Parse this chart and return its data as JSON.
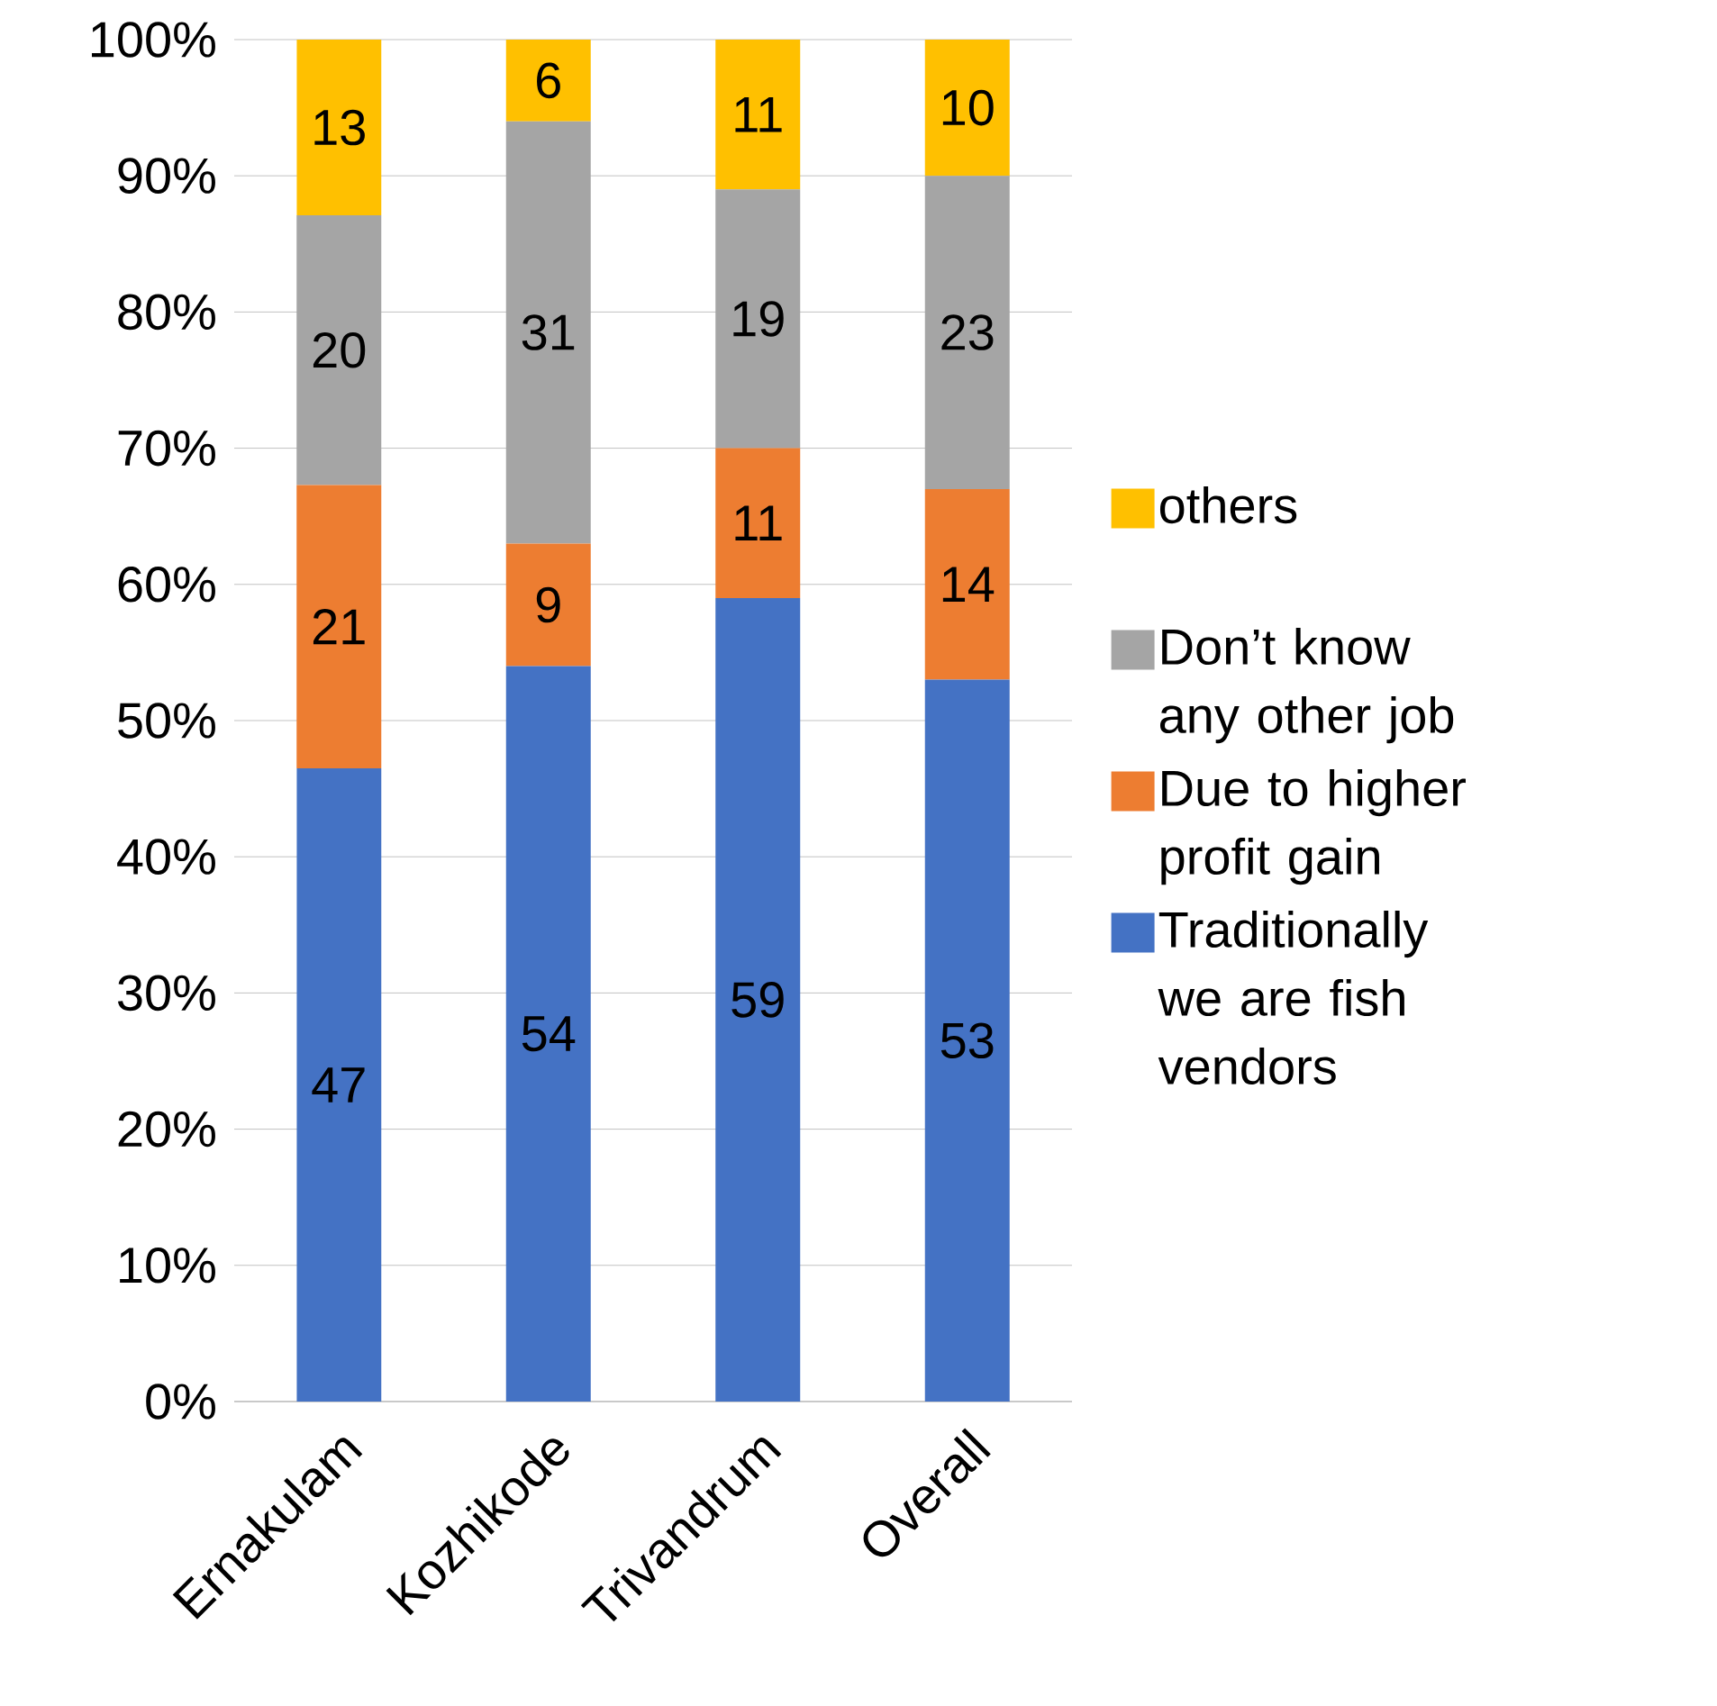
{
  "chart_data": {
    "type": "bar",
    "stacked": true,
    "categories": [
      "Ernakulam",
      "Kozhikode",
      "Trivandrum",
      "Overall"
    ],
    "series": [
      {
        "name": "Traditionally we are fish vendors",
        "color": "#4472c4",
        "values": [
          46.5,
          54,
          59,
          53
        ],
        "value_labels": [
          "47",
          "54",
          "59",
          "53"
        ]
      },
      {
        "name": "Due to higher profit gain",
        "color": "#ed7d31",
        "values": [
          20.8,
          9,
          11,
          14
        ],
        "value_labels": [
          "21",
          "9",
          "11",
          "14"
        ]
      },
      {
        "name": "Don’t know any other job",
        "color": "#a5a5a5",
        "values": [
          19.8,
          31,
          19,
          23
        ],
        "value_labels": [
          "20",
          "31",
          "19",
          "23"
        ]
      },
      {
        "name": "others",
        "color": "#ffc000",
        "values": [
          12.9,
          6,
          11,
          10
        ],
        "value_labels": [
          "13",
          "6",
          "11",
          "10"
        ]
      }
    ],
    "ylim": [
      0,
      100
    ],
    "yticks": [
      {
        "value": 0,
        "label": "0%"
      },
      {
        "value": 10,
        "label": "10%"
      },
      {
        "value": 20,
        "label": "20%"
      },
      {
        "value": 30,
        "label": "30%"
      },
      {
        "value": 40,
        "label": "40%"
      },
      {
        "value": 50,
        "label": "50%"
      },
      {
        "value": 60,
        "label": "60%"
      },
      {
        "value": 70,
        "label": "70%"
      },
      {
        "value": 80,
        "label": "80%"
      },
      {
        "value": 90,
        "label": "90%"
      },
      {
        "value": 100,
        "label": "100%"
      }
    ],
    "grid": "y",
    "legend": "right"
  }
}
